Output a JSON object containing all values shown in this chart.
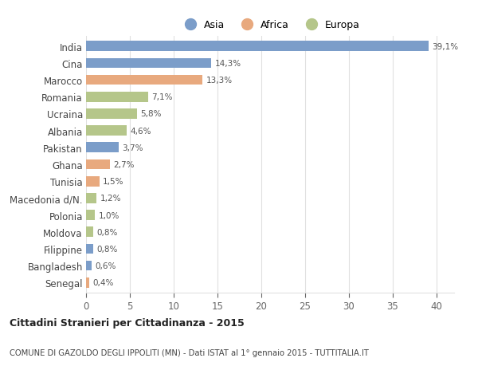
{
  "countries": [
    "India",
    "Cina",
    "Marocco",
    "Romania",
    "Ucraina",
    "Albania",
    "Pakistan",
    "Ghana",
    "Tunisia",
    "Macedonia d/N.",
    "Polonia",
    "Moldova",
    "Filippine",
    "Bangladesh",
    "Senegal"
  ],
  "values": [
    39.1,
    14.3,
    13.3,
    7.1,
    5.8,
    4.6,
    3.7,
    2.7,
    1.5,
    1.2,
    1.0,
    0.8,
    0.8,
    0.6,
    0.4
  ],
  "labels": [
    "39,1%",
    "14,3%",
    "13,3%",
    "7,1%",
    "5,8%",
    "4,6%",
    "3,7%",
    "2,7%",
    "1,5%",
    "1,2%",
    "1,0%",
    "0,8%",
    "0,8%",
    "0,6%",
    "0,4%"
  ],
  "continents": [
    "Asia",
    "Asia",
    "Africa",
    "Europa",
    "Europa",
    "Europa",
    "Asia",
    "Africa",
    "Africa",
    "Europa",
    "Europa",
    "Europa",
    "Asia",
    "Asia",
    "Africa"
  ],
  "colors": {
    "Asia": "#7b9dc9",
    "Africa": "#e8a97e",
    "Europa": "#b5c68a"
  },
  "title": "Cittadini Stranieri per Cittadinanza - 2015",
  "subtitle": "COMUNE DI GAZOLDO DEGLI IPPOLITI (MN) - Dati ISTAT al 1° gennaio 2015 - TUTTITALIA.IT",
  "xlim": [
    0,
    42
  ],
  "xticks": [
    0,
    5,
    10,
    15,
    20,
    25,
    30,
    35,
    40
  ],
  "background_color": "#ffffff",
  "grid_color": "#e0e0e0",
  "bar_height": 0.6
}
